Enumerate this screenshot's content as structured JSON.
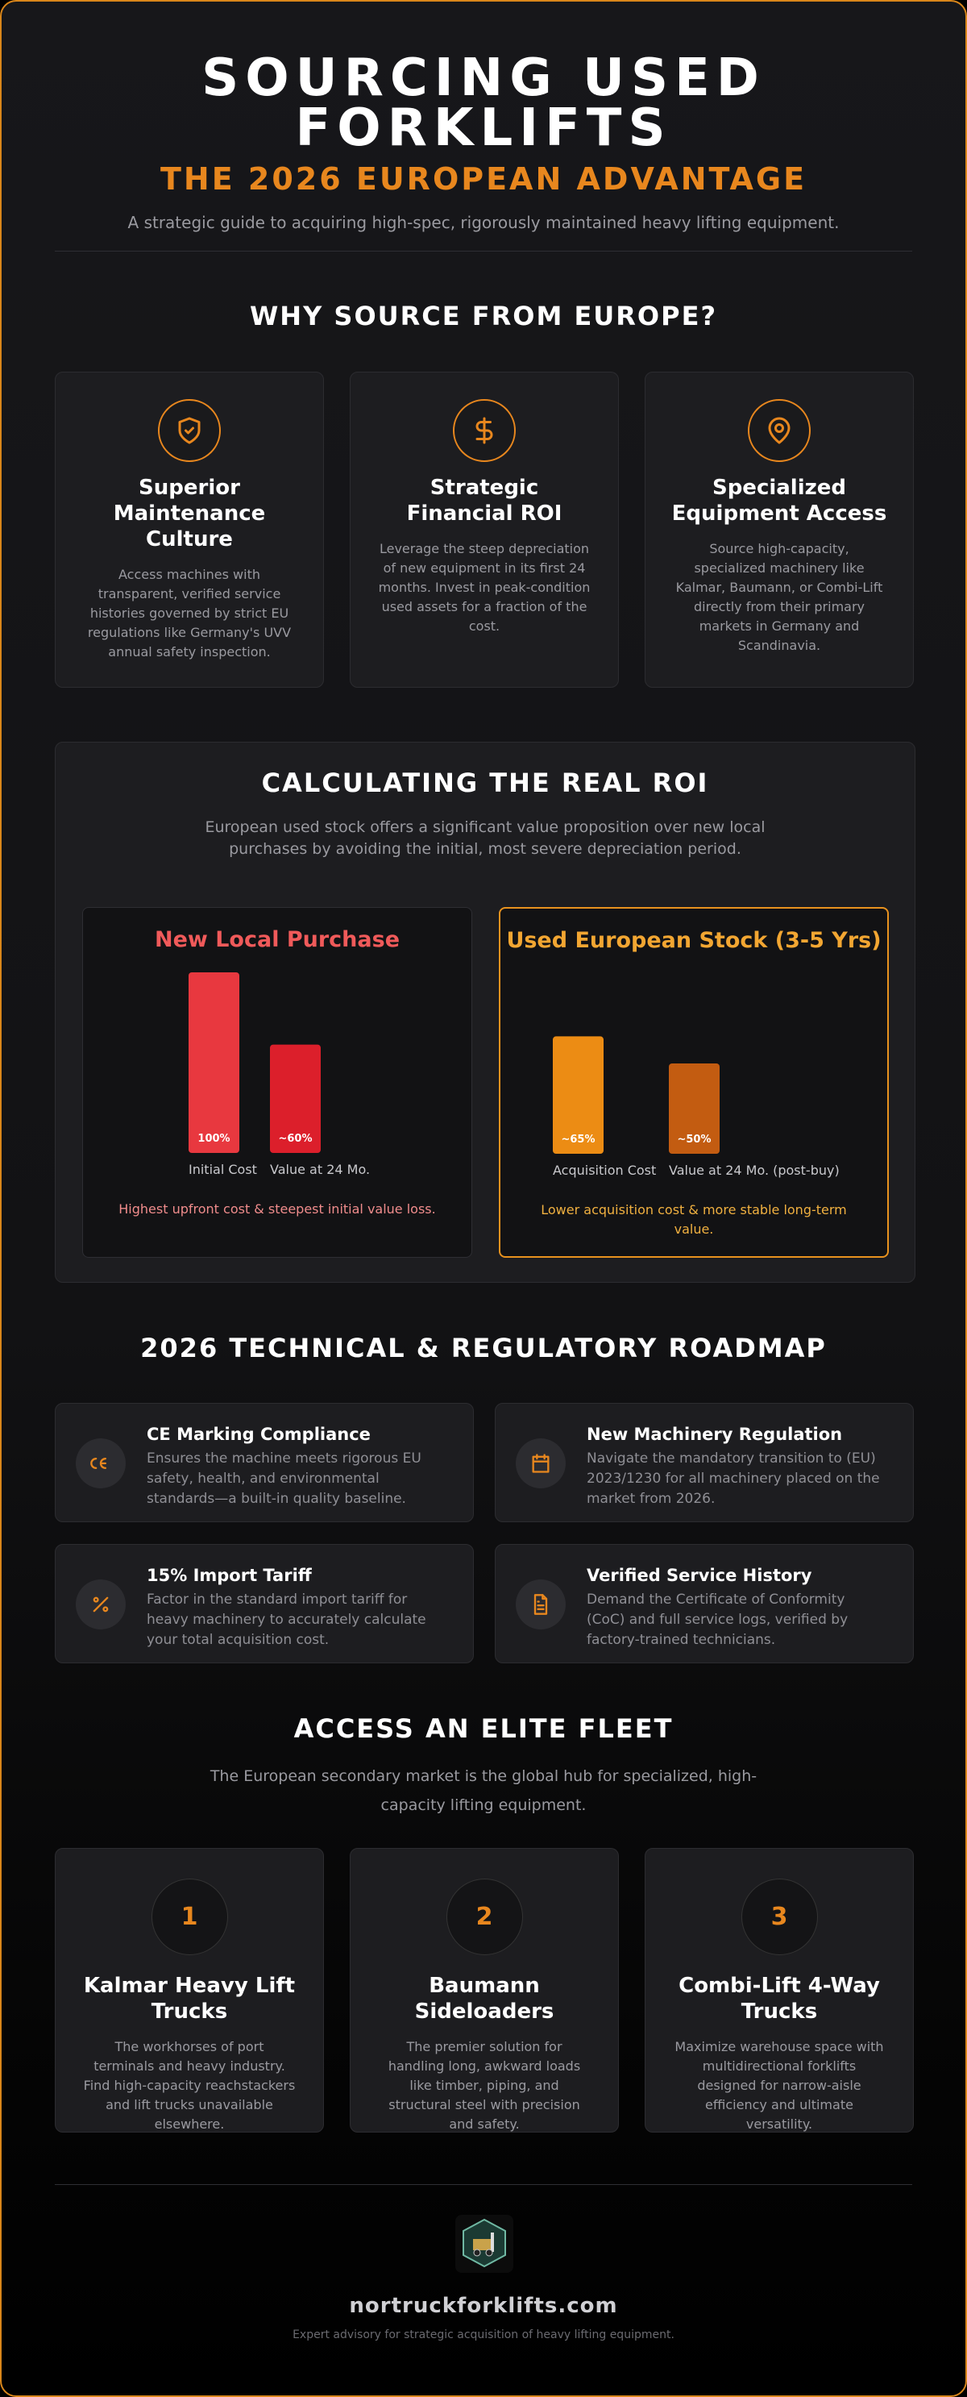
{
  "header": {
    "title": "SOURCING USED FORKLIFTS",
    "subtitle": "THE 2026 EUROPEAN ADVANTAGE",
    "tagline": "A strategic guide to acquiring high-spec, rigorously maintained heavy lifting equipment."
  },
  "why": {
    "heading": "WHY SOURCE FROM EUROPE?",
    "cards": [
      {
        "title": "Superior Maintenance Culture",
        "text": "Access machines with transparent, verified service histories governed by strict EU regulations like Germany's UVV annual safety inspection."
      },
      {
        "title": "Strategic Financial ROI",
        "text": "Leverage the steep depreciation of new equipment in its first 24 months. Invest in peak-condition used assets for a fraction of the cost."
      },
      {
        "title": "Specialized Equipment Access",
        "text": "Source high-capacity, specialized machinery like Kalmar, Baumann, or Combi-Lift directly from their primary markets in Germany and Scandinavia."
      }
    ]
  },
  "roi": {
    "heading": "CALCULATING THE REAL ROI",
    "intro": "European used stock offers a significant value proposition over new local purchases by avoiding the initial, most severe depreciation period."
  },
  "chart_data": [
    {
      "type": "bar",
      "title": "New Local Purchase",
      "categories": [
        "Initial Cost",
        "Value at 24 Mo."
      ],
      "values": [
        100,
        60
      ],
      "value_labels": [
        "100%",
        "~60%"
      ],
      "colors": [
        "#e8383f",
        "#dc1f2b"
      ],
      "note": "Highest upfront cost & steepest initial value loss."
    },
    {
      "type": "bar",
      "title": "Used European Stock (3-5 Yrs)",
      "categories": [
        "Acquisition Cost",
        "Value at 24 Mo. (post-buy)"
      ],
      "values": [
        65,
        50
      ],
      "value_labels": [
        "~65%",
        "~50%"
      ],
      "colors": [
        "#ec8c14",
        "#c35c11"
      ],
      "note": "Lower acquisition cost & more stable long-term value."
    }
  ],
  "roadmap": {
    "heading": "2026 TECHNICAL & REGULATORY ROADMAP",
    "items": [
      {
        "title": "CE Marking Compliance",
        "text": "Ensures the machine meets rigorous EU safety, health, and environmental standards—a built-in quality baseline."
      },
      {
        "title": "New Machinery Regulation",
        "text": "Navigate the mandatory transition to (EU) 2023/1230 for all machinery placed on the market from 2026."
      },
      {
        "title": "15% Import Tariff",
        "text": "Factor in the standard import tariff for heavy machinery to accurately calculate your total acquisition cost."
      },
      {
        "title": "Verified Service History",
        "text": "Demand the Certificate of Conformity (CoC) and full service logs, verified by factory-trained technicians."
      }
    ]
  },
  "fleet": {
    "heading": "ACCESS AN ELITE FLEET",
    "intro": "The European secondary market is the global hub for specialized, high-capacity lifting equipment.",
    "items": [
      {
        "number": 1,
        "title": "Kalmar Heavy Lift Trucks",
        "text": "The workhorses of port terminals and heavy industry. Find high-capacity reachstackers and lift trucks unavailable elsewhere."
      },
      {
        "number": 2,
        "title": "Baumann Sideloaders",
        "text": "The premier solution for handling long, awkward loads like timber, piping, and structural steel with precision and safety."
      },
      {
        "number": 3,
        "title": "Combi-Lift 4-Way Trucks",
        "text": "Maximize warehouse space with multidirectional forklifts designed for narrow-aisle efficiency and ultimate versatility."
      }
    ]
  },
  "footer": {
    "domain": "nortruckforklifts.com",
    "tagline": "Expert advisory for strategic acquisition of heavy lifting equipment."
  }
}
